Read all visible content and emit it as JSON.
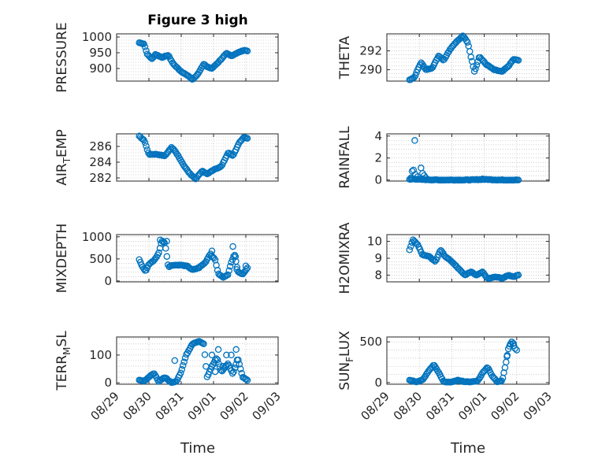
{
  "figure": {
    "title": "Figure 3 high",
    "xlabel": "Time",
    "marker_color": "#0072BD"
  },
  "chart_data": [
    {
      "type": "scatter",
      "title": "Figure 3 high",
      "ylabel": "PRESSURE",
      "ylabel_sub": "",
      "ylim": [
        860,
        1010
      ],
      "yticks": [
        900,
        950,
        1000
      ],
      "grid": true,
      "xlim": [
        0,
        4
      ],
      "x_ticklabels": [],
      "anchors": [
        [
          0.7,
          982
        ],
        [
          0.85,
          978
        ],
        [
          0.95,
          945
        ],
        [
          1.1,
          930
        ],
        [
          1.2,
          945
        ],
        [
          1.4,
          935
        ],
        [
          1.6,
          942
        ],
        [
          1.75,
          915
        ],
        [
          1.85,
          905
        ],
        [
          2.0,
          890
        ],
        [
          2.2,
          878
        ],
        [
          2.35,
          865
        ],
        [
          2.5,
          880
        ],
        [
          2.7,
          915
        ],
        [
          2.8,
          905
        ],
        [
          2.95,
          900
        ],
        [
          3.15,
          920
        ],
        [
          3.4,
          948
        ],
        [
          3.55,
          940
        ],
        [
          3.75,
          950
        ],
        [
          3.95,
          958
        ],
        [
          4.05,
          956
        ]
      ]
    },
    {
      "type": "scatter",
      "title": "",
      "ylabel": "THETA",
      "ylabel_sub": "",
      "ylim": [
        288.8,
        293.8
      ],
      "yticks": [
        290,
        292
      ],
      "grid": true,
      "xlim": [
        0,
        4
      ],
      "x_ticklabels": [],
      "anchors": [
        [
          0.7,
          288.9
        ],
        [
          0.85,
          289.2
        ],
        [
          1.05,
          290.8
        ],
        [
          1.2,
          290.0
        ],
        [
          1.4,
          290.2
        ],
        [
          1.6,
          291.5
        ],
        [
          1.75,
          291.0
        ],
        [
          1.95,
          292.2
        ],
        [
          2.15,
          293.0
        ],
        [
          2.35,
          293.6
        ],
        [
          2.5,
          292.8
        ],
        [
          2.6,
          291.2
        ],
        [
          2.7,
          289.8
        ],
        [
          2.85,
          291.4
        ],
        [
          3.05,
          290.6
        ],
        [
          3.3,
          290.0
        ],
        [
          3.55,
          289.8
        ],
        [
          3.75,
          290.4
        ],
        [
          3.9,
          291.1
        ],
        [
          4.05,
          291.0
        ]
      ]
    },
    {
      "type": "scatter",
      "title": "",
      "ylabel": "AIR",
      "ylabel_sub": "T",
      "ylabel_suffix": "EMP",
      "ylim": [
        281.6,
        287.6
      ],
      "yticks": [
        282,
        284,
        286
      ],
      "grid": true,
      "xlim": [
        0,
        4
      ],
      "x_ticklabels": [],
      "anchors": [
        [
          0.7,
          287.3
        ],
        [
          0.85,
          286.8
        ],
        [
          1.0,
          285.0
        ],
        [
          1.25,
          285.0
        ],
        [
          1.5,
          284.8
        ],
        [
          1.7,
          285.9
        ],
        [
          1.85,
          285.2
        ],
        [
          2.05,
          283.8
        ],
        [
          2.25,
          282.6
        ],
        [
          2.45,
          281.9
        ],
        [
          2.65,
          282.9
        ],
        [
          2.8,
          282.5
        ],
        [
          3.0,
          283.0
        ],
        [
          3.25,
          283.5
        ],
        [
          3.45,
          285.2
        ],
        [
          3.6,
          284.8
        ],
        [
          3.8,
          286.5
        ],
        [
          3.95,
          287.2
        ],
        [
          4.05,
          287.0
        ]
      ]
    },
    {
      "type": "scatter",
      "title": "",
      "ylabel": "RAINFALL",
      "ylabel_sub": "",
      "ylim": [
        -0.1,
        4.2
      ],
      "yticks": [
        0,
        2,
        4
      ],
      "grid": true,
      "xlim": [
        0,
        4
      ],
      "x_ticklabels": [],
      "anchors": [
        [
          0.7,
          0.05
        ],
        [
          0.82,
          0.1
        ],
        [
          1.0,
          0.05
        ],
        [
          1.3,
          0.02
        ],
        [
          1.6,
          0.0
        ],
        [
          2.0,
          0.0
        ],
        [
          2.5,
          0.0
        ],
        [
          3.0,
          0.05
        ],
        [
          3.5,
          0.0
        ],
        [
          4.05,
          0.0
        ]
      ],
      "extra_points": [
        [
          0.75,
          0.2
        ],
        [
          0.78,
          0.8
        ],
        [
          0.82,
          0.9
        ],
        [
          0.86,
          3.6
        ],
        [
          0.88,
          0.5
        ],
        [
          0.95,
          0.3
        ],
        [
          1.05,
          1.1
        ],
        [
          1.1,
          0.6
        ],
        [
          1.15,
          0.4
        ],
        [
          1.2,
          0.2
        ],
        [
          2.95,
          0.1
        ]
      ]
    },
    {
      "type": "scatter",
      "title": "",
      "ylabel": "MIXDEPTH",
      "ylabel_sub": "",
      "ylim": [
        -20,
        1050
      ],
      "yticks": [
        0,
        500,
        1000
      ],
      "grid": true,
      "xlim": [
        0,
        4
      ],
      "x_ticklabels": [],
      "anchors": [
        [
          0.7,
          480
        ],
        [
          0.8,
          320
        ],
        [
          0.9,
          220
        ],
        [
          1.0,
          380
        ],
        [
          1.15,
          460
        ],
        [
          1.3,
          620
        ],
        [
          1.4,
          920
        ],
        [
          1.5,
          850
        ],
        [
          1.6,
          320
        ],
        [
          1.75,
          360
        ],
        [
          2.0,
          360
        ],
        [
          2.2,
          330
        ],
        [
          2.35,
          250
        ],
        [
          2.55,
          300
        ],
        [
          2.75,
          420
        ],
        [
          2.9,
          620
        ],
        [
          3.05,
          480
        ],
        [
          3.15,
          160
        ],
        [
          3.3,
          80
        ],
        [
          3.45,
          150
        ],
        [
          3.55,
          420
        ],
        [
          3.65,
          620
        ],
        [
          3.75,
          220
        ],
        [
          3.9,
          150
        ],
        [
          4.05,
          300
        ]
      ],
      "extra_points": [
        [
          1.35,
          930
        ],
        [
          1.45,
          880
        ],
        [
          1.55,
          900
        ],
        [
          2.95,
          680
        ],
        [
          3.6,
          780
        ],
        [
          3.68,
          550
        ],
        [
          3.72,
          260
        ],
        [
          4.0,
          340
        ]
      ]
    },
    {
      "type": "scatter",
      "title": "",
      "ylabel": "H2OMIXRA",
      "ylabel_sub": "",
      "ylim": [
        7.6,
        10.4
      ],
      "yticks": [
        8,
        9,
        10
      ],
      "grid": true,
      "xlim": [
        0,
        4
      ],
      "x_ticklabels": [],
      "anchors": [
        [
          0.7,
          9.5
        ],
        [
          0.8,
          10.1
        ],
        [
          0.95,
          9.8
        ],
        [
          1.1,
          9.2
        ],
        [
          1.3,
          9.1
        ],
        [
          1.5,
          8.8
        ],
        [
          1.65,
          9.5
        ],
        [
          1.8,
          9.1
        ],
        [
          2.0,
          8.8
        ],
        [
          2.2,
          8.4
        ],
        [
          2.4,
          8.0
        ],
        [
          2.6,
          8.2
        ],
        [
          2.75,
          8.0
        ],
        [
          2.95,
          8.2
        ],
        [
          3.1,
          7.8
        ],
        [
          3.35,
          7.9
        ],
        [
          3.55,
          7.8
        ],
        [
          3.75,
          8.0
        ],
        [
          3.9,
          7.9
        ],
        [
          4.05,
          8.0
        ]
      ]
    },
    {
      "type": "scatter",
      "title": "",
      "ylabel": "TERR",
      "ylabel_sub": "M",
      "ylabel_suffix": "SL",
      "ylim": [
        -5,
        165
      ],
      "yticks": [
        0,
        100
      ],
      "grid": true,
      "xlim": [
        0,
        4
      ],
      "x_ticklabels": [
        "08/29",
        "08/30",
        "08/31",
        "09/01",
        "09/02",
        "09/03"
      ],
      "anchors": [
        [
          0.7,
          10
        ],
        [
          0.85,
          5
        ],
        [
          1.0,
          20
        ],
        [
          1.15,
          35
        ],
        [
          1.3,
          5
        ],
        [
          1.5,
          20
        ],
        [
          1.7,
          0
        ],
        [
          1.85,
          5
        ],
        [
          2.0,
          40
        ],
        [
          2.15,
          100
        ],
        [
          2.35,
          140
        ],
        [
          2.55,
          150
        ],
        [
          2.7,
          140
        ],
        [
          2.8,
          20
        ],
        [
          2.95,
          60
        ],
        [
          3.1,
          90
        ],
        [
          3.25,
          40
        ],
        [
          3.45,
          70
        ],
        [
          3.6,
          30
        ],
        [
          3.75,
          90
        ],
        [
          3.9,
          20
        ],
        [
          4.05,
          10
        ]
      ],
      "extra_points": [
        [
          1.8,
          80
        ],
        [
          2.95,
          100
        ],
        [
          3.05,
          40
        ],
        [
          3.15,
          120
        ],
        [
          3.3,
          60
        ],
        [
          3.4,
          100
        ],
        [
          3.55,
          100
        ],
        [
          3.7,
          120
        ]
      ]
    },
    {
      "type": "scatter",
      "title": "",
      "ylabel": "SUN",
      "ylabel_sub": "F",
      "ylabel_suffix": "LUX",
      "ylim": [
        -20,
        560
      ],
      "yticks": [
        0,
        500
      ],
      "grid": true,
      "xlim": [
        0,
        4
      ],
      "x_ticklabels": [
        "08/29",
        "08/30",
        "08/31",
        "09/01",
        "09/02",
        "09/03"
      ],
      "anchors": [
        [
          0.7,
          30
        ],
        [
          0.9,
          10
        ],
        [
          1.1,
          30
        ],
        [
          1.3,
          150
        ],
        [
          1.45,
          220
        ],
        [
          1.6,
          120
        ],
        [
          1.75,
          10
        ],
        [
          2.0,
          5
        ],
        [
          2.2,
          30
        ],
        [
          2.4,
          10
        ],
        [
          2.6,
          10
        ],
        [
          2.8,
          20
        ],
        [
          2.95,
          120
        ],
        [
          3.1,
          190
        ],
        [
          3.25,
          80
        ],
        [
          3.4,
          10
        ],
        [
          3.55,
          20
        ],
        [
          3.65,
          200
        ],
        [
          3.75,
          430
        ],
        [
          3.85,
          500
        ],
        [
          3.95,
          420
        ]
      ],
      "extra_points": [
        [
          3.7,
          320
        ],
        [
          3.8,
          470
        ],
        [
          3.9,
          480
        ],
        [
          4.0,
          400
        ]
      ]
    }
  ]
}
